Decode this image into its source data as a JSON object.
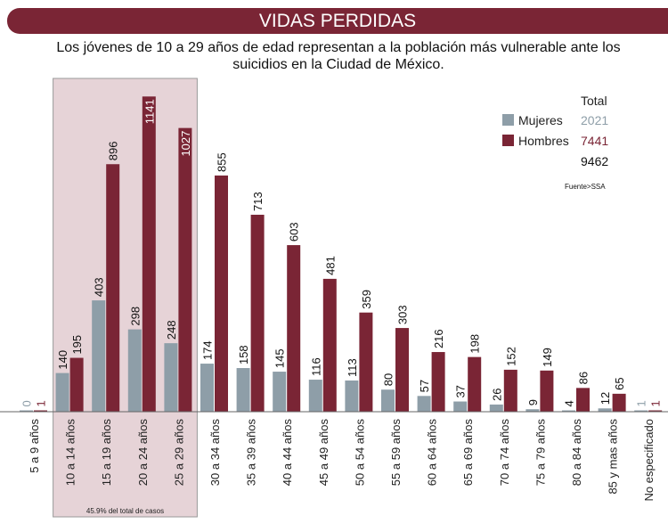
{
  "header": {
    "title": "VIDAS PERDIDAS"
  },
  "subtitle": "Los jóvenes de 10 a 29 años de edad representan a la población más vulnerable ante los suicidios en la Ciudad de México.",
  "chart_data": {
    "type": "bar",
    "categories": [
      "5 a 9 años",
      "10 a 14 años",
      "15 a 19 años",
      "20 a 24 años",
      "25 a 29 años",
      "30 a 34 años",
      "35 a 39 años",
      "40 a 44 años",
      "45 a 49 años",
      "50 a 54 años",
      "55 a 59 años",
      "60 a 64 años",
      "65 a 69 años",
      "70 a 74 años",
      "75 a 79 años",
      "80 a 84 años",
      "85 y mas años",
      "No especificado"
    ],
    "series": [
      {
        "name": "Mujeres",
        "color": "#8e9ea8",
        "values": [
          0,
          140,
          403,
          298,
          248,
          174,
          158,
          145,
          116,
          113,
          80,
          57,
          37,
          26,
          9,
          4,
          12,
          1
        ]
      },
      {
        "name": "Hombres",
        "color": "#7a2535",
        "values": [
          1,
          195,
          896,
          1141,
          1027,
          855,
          713,
          603,
          481,
          359,
          303,
          216,
          198,
          152,
          149,
          86,
          65,
          1
        ]
      }
    ],
    "legend": {
      "placement": "top-right",
      "total_header": "Total",
      "totals": [
        "2021",
        "7441"
      ],
      "grand_total": "9462"
    },
    "source": "Fuente>SSA",
    "highlight": {
      "categories": [
        "10 a 14 años",
        "15 a 19 años",
        "20 a 24 años",
        "25 a 29 años"
      ],
      "label": "45.9% del total de casos",
      "color": "#e6d3d7"
    },
    "ylim": [
      0,
      1150
    ]
  }
}
